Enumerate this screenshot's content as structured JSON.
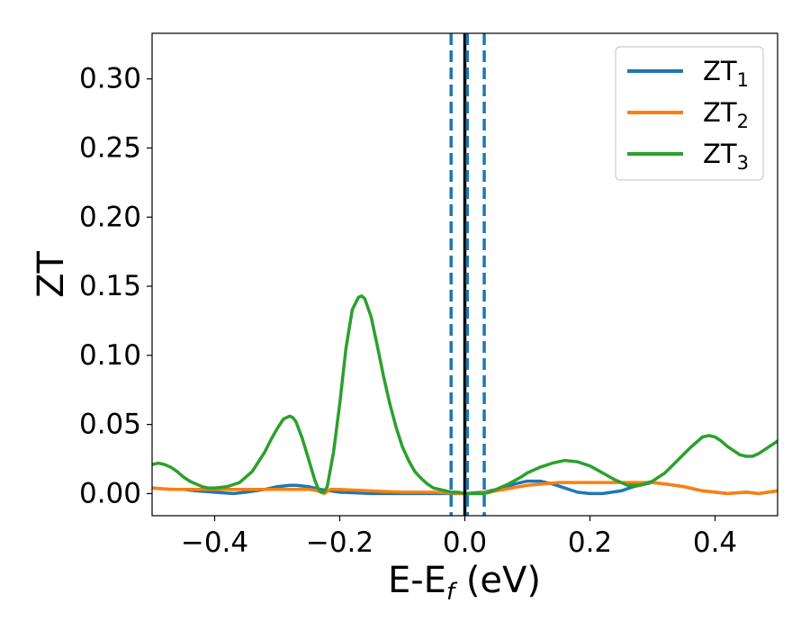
{
  "chart_data": {
    "type": "line",
    "xlabel": {
      "main": "E-E",
      "sub": "f",
      "suffix": " (eV)"
    },
    "ylabel": "ZT",
    "xlim": [
      -0.5,
      0.5
    ],
    "ylim": [
      -0.016,
      0.333
    ],
    "xticks": [
      -0.4,
      -0.2,
      0.0,
      0.2,
      0.4
    ],
    "xtick_labels": [
      "−0.4",
      "−0.2",
      "0.0",
      "0.2",
      "0.4"
    ],
    "yticks": [
      0.0,
      0.05,
      0.1,
      0.15,
      0.2,
      0.25,
      0.3
    ],
    "ytick_labels": [
      "0.00",
      "0.05",
      "0.10",
      "0.15",
      "0.20",
      "0.25",
      "0.30"
    ],
    "grid": false,
    "legend_position": "top-right",
    "vlines": [
      {
        "x": 0.0,
        "style": "solid",
        "color": "#000000"
      },
      {
        "x": -0.022,
        "style": "dashed",
        "color": "#1f77b4"
      },
      {
        "x": 0.004,
        "style": "dashed",
        "color": "#1f77b4"
      },
      {
        "x": 0.031,
        "style": "dashed",
        "color": "#1f77b4"
      }
    ],
    "series": [
      {
        "name": "ZT",
        "sub": "1",
        "color": "#1f77b4",
        "x": [
          -0.5,
          -0.47,
          -0.45,
          -0.43,
          -0.4,
          -0.37,
          -0.35,
          -0.32,
          -0.3,
          -0.28,
          -0.27,
          -0.25,
          -0.23,
          -0.2,
          -0.15,
          -0.1,
          -0.05,
          0.0,
          0.03,
          0.06,
          0.08,
          0.1,
          0.12,
          0.14,
          0.16,
          0.18,
          0.2,
          0.22,
          0.25,
          0.27,
          0.3,
          0.32,
          0.35,
          0.38,
          0.4,
          0.42,
          0.45,
          0.47,
          0.5
        ],
        "values": [
          0.004,
          0.003,
          0.003,
          0.002,
          0.001,
          0.0,
          0.001,
          0.003,
          0.005,
          0.006,
          0.006,
          0.005,
          0.003,
          0.001,
          0.0,
          0.0,
          0.0,
          0.0,
          0.001,
          0.004,
          0.007,
          0.009,
          0.009,
          0.007,
          0.004,
          0.001,
          0.0,
          0.0,
          0.002,
          0.005,
          0.008,
          0.007,
          0.005,
          0.002,
          0.001,
          0.0,
          0.001,
          0.0,
          0.002
        ]
      },
      {
        "name": "ZT",
        "sub": "2",
        "color": "#ff7f0e",
        "x": [
          -0.5,
          -0.47,
          -0.45,
          -0.43,
          -0.4,
          -0.35,
          -0.3,
          -0.27,
          -0.25,
          -0.235,
          -0.225,
          -0.215,
          -0.2,
          -0.15,
          -0.1,
          -0.05,
          0.0,
          0.02,
          0.05,
          0.1,
          0.15,
          0.2,
          0.25,
          0.28,
          0.3,
          0.32,
          0.35,
          0.38,
          0.4,
          0.42,
          0.45,
          0.47,
          0.5
        ],
        "values": [
          0.004,
          0.003,
          0.003,
          0.003,
          0.003,
          0.003,
          0.003,
          0.003,
          0.003,
          0.002,
          0.0,
          0.003,
          0.003,
          0.002,
          0.001,
          0.001,
          0.0,
          0.0,
          0.002,
          0.006,
          0.008,
          0.008,
          0.008,
          0.008,
          0.008,
          0.007,
          0.005,
          0.002,
          0.001,
          0.0,
          0.001,
          0.0,
          0.002
        ]
      },
      {
        "name": "ZT",
        "sub": "3",
        "color": "#2ca02c",
        "x": [
          -0.5,
          -0.49,
          -0.48,
          -0.47,
          -0.46,
          -0.45,
          -0.44,
          -0.43,
          -0.42,
          -0.41,
          -0.4,
          -0.38,
          -0.36,
          -0.34,
          -0.32,
          -0.31,
          -0.3,
          -0.29,
          -0.28,
          -0.275,
          -0.27,
          -0.26,
          -0.25,
          -0.24,
          -0.235,
          -0.23,
          -0.225,
          -0.22,
          -0.21,
          -0.2,
          -0.19,
          -0.18,
          -0.17,
          -0.165,
          -0.16,
          -0.15,
          -0.14,
          -0.13,
          -0.12,
          -0.11,
          -0.1,
          -0.09,
          -0.08,
          -0.07,
          -0.06,
          -0.05,
          -0.04,
          -0.03,
          -0.02,
          -0.01,
          0.0,
          0.01,
          0.02,
          0.03,
          0.04,
          0.05,
          0.07,
          0.09,
          0.1,
          0.12,
          0.14,
          0.16,
          0.18,
          0.2,
          0.22,
          0.24,
          0.26,
          0.28,
          0.3,
          0.32,
          0.34,
          0.36,
          0.37,
          0.38,
          0.39,
          0.4,
          0.41,
          0.42,
          0.43,
          0.44,
          0.45,
          0.46,
          0.47,
          0.48,
          0.49,
          0.5
        ],
        "values": [
          0.021,
          0.022,
          0.021,
          0.019,
          0.016,
          0.012,
          0.009,
          0.007,
          0.005,
          0.004,
          0.004,
          0.005,
          0.008,
          0.016,
          0.03,
          0.039,
          0.047,
          0.054,
          0.056,
          0.055,
          0.052,
          0.04,
          0.025,
          0.01,
          0.004,
          0.001,
          0.001,
          0.005,
          0.03,
          0.065,
          0.105,
          0.133,
          0.142,
          0.143,
          0.141,
          0.128,
          0.107,
          0.085,
          0.065,
          0.048,
          0.034,
          0.024,
          0.016,
          0.011,
          0.007,
          0.004,
          0.003,
          0.002,
          0.001,
          0.001,
          0.0,
          0.0,
          0.0,
          0.0,
          0.001,
          0.003,
          0.007,
          0.012,
          0.015,
          0.019,
          0.022,
          0.024,
          0.023,
          0.02,
          0.015,
          0.01,
          0.006,
          0.006,
          0.009,
          0.015,
          0.024,
          0.033,
          0.037,
          0.041,
          0.042,
          0.041,
          0.038,
          0.034,
          0.031,
          0.028,
          0.027,
          0.027,
          0.029,
          0.032,
          0.035,
          0.038
        ]
      }
    ]
  }
}
